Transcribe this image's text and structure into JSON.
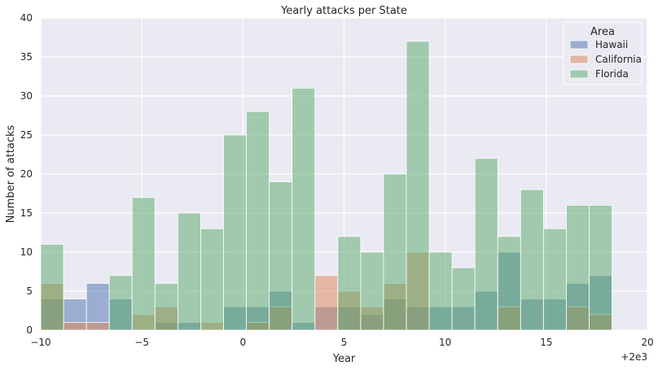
{
  "chart_data": {
    "type": "bar",
    "title": "Yearly attacks per State",
    "xlabel": "Year",
    "ylabel": "Number of attacks",
    "x_offset_label": "+2e3",
    "xlim": [
      -10,
      20
    ],
    "ylim": [
      0,
      40
    ],
    "x_ticks": [
      "−10",
      "−5",
      "0",
      "5",
      "10",
      "15",
      "20"
    ],
    "y_ticks": [
      "0",
      "5",
      "10",
      "15",
      "20",
      "25",
      "30",
      "35",
      "40"
    ],
    "grid": true,
    "legend": {
      "title": "Area",
      "position": "top-right"
    },
    "bin_edges": [
      -10,
      -8.87,
      -7.74,
      -6.61,
      -5.48,
      -4.35,
      -3.22,
      -2.09,
      -0.96,
      0.17,
      1.3,
      2.43,
      3.56,
      4.69,
      5.82,
      6.95,
      8.08,
      9.21,
      10.34,
      11.47,
      12.6,
      13.73,
      14.86,
      15.99,
      17.12,
      18.25
    ],
    "series": [
      {
        "name": "Hawaii",
        "color": "#4c72b0",
        "values": [
          4,
          4,
          6,
          4,
          0,
          1,
          1,
          0,
          3,
          3,
          5,
          1,
          3,
          3,
          2,
          4,
          3,
          3,
          3,
          5,
          10,
          4,
          4,
          6,
          7
        ]
      },
      {
        "name": "California",
        "color": "#dd8452",
        "values": [
          6,
          1,
          1,
          0,
          2,
          3,
          0,
          1,
          0,
          1,
          3,
          0,
          7,
          5,
          3,
          6,
          10,
          0,
          0,
          0,
          3,
          0,
          0,
          3,
          2
        ]
      },
      {
        "name": "Florida",
        "color": "#55a868",
        "values": [
          11,
          0,
          0,
          7,
          17,
          6,
          15,
          13,
          25,
          28,
          19,
          31,
          0,
          12,
          10,
          20,
          37,
          10,
          8,
          22,
          12,
          18,
          13,
          16,
          16
        ]
      }
    ]
  }
}
